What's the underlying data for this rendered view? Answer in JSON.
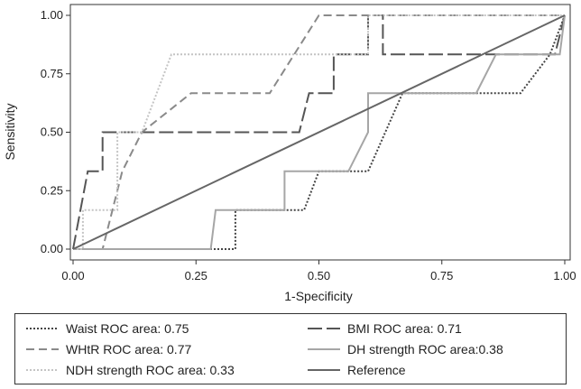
{
  "chart_data": {
    "type": "line",
    "xlabel": "1-Specificity",
    "ylabel": "Sensitivity",
    "xlim": [
      0,
      1
    ],
    "ylim": [
      0,
      1
    ],
    "xticks": [
      "0.00",
      "0.25",
      "0.50",
      "0.75",
      "1.00"
    ],
    "yticks": [
      "0.00",
      "0.25",
      "0.50",
      "0.75",
      "1.00"
    ],
    "grid": false,
    "legend_position": "bottom",
    "series": [
      {
        "name": "Waist ROC area: 0.75",
        "color": "#444444",
        "dash": "dotted",
        "points": [
          [
            0,
            0
          ],
          [
            0.33,
            0
          ],
          [
            0.33,
            0.167
          ],
          [
            0.47,
            0.167
          ],
          [
            0.5,
            0.333
          ],
          [
            0.6,
            0.333
          ],
          [
            0.67,
            0.667
          ],
          [
            0.91,
            0.667
          ],
          [
            0.97,
            0.833
          ],
          [
            1,
            1
          ]
        ]
      },
      {
        "name": "BMI ROC area: 0.71",
        "color": "#555555",
        "dash": "longdash",
        "points": [
          [
            0,
            0
          ],
          [
            0.03,
            0.333
          ],
          [
            0.06,
            0.333
          ],
          [
            0.06,
            0.5
          ],
          [
            0.46,
            0.5
          ],
          [
            0.48,
            0.667
          ],
          [
            0.53,
            0.667
          ],
          [
            0.53,
            0.833
          ],
          [
            0.6,
            0.833
          ],
          [
            0.6,
            1
          ],
          [
            0.63,
            1
          ],
          [
            0.63,
            0.833
          ],
          [
            0.98,
            0.833
          ],
          [
            1,
            1
          ]
        ]
      },
      {
        "name": "WHtR ROC area: 0.77",
        "color": "#8a8a8a",
        "dash": "dashed",
        "points": [
          [
            0,
            0
          ],
          [
            0.06,
            0
          ],
          [
            0.1,
            0.333
          ],
          [
            0.14,
            0.5
          ],
          [
            0.24,
            0.667
          ],
          [
            0.4,
            0.667
          ],
          [
            0.5,
            1
          ],
          [
            0.63,
            1
          ],
          [
            1,
            1
          ]
        ]
      },
      {
        "name": "DH strength ROC area:0.38",
        "color": "#a6a6a6",
        "dash": "solid",
        "points": [
          [
            0,
            0
          ],
          [
            0.28,
            0
          ],
          [
            0.29,
            0.167
          ],
          [
            0.43,
            0.167
          ],
          [
            0.43,
            0.333
          ],
          [
            0.56,
            0.333
          ],
          [
            0.6,
            0.5
          ],
          [
            0.6,
            0.667
          ],
          [
            0.82,
            0.667
          ],
          [
            0.86,
            0.833
          ],
          [
            0.99,
            0.833
          ],
          [
            1,
            1
          ]
        ]
      },
      {
        "name": "NDH strength ROC area: 0.33",
        "color": "#c4c4c4",
        "dash": "dotted",
        "points": [
          [
            0,
            0
          ],
          [
            0.02,
            0
          ],
          [
            0.02,
            0.167
          ],
          [
            0.09,
            0.167
          ],
          [
            0.09,
            0.5
          ],
          [
            0.14,
            0.5
          ],
          [
            0.2,
            0.833
          ],
          [
            0.6,
            0.833
          ],
          [
            0.6,
            1
          ],
          [
            1,
            1
          ]
        ]
      },
      {
        "name": "Reference",
        "color": "#666666",
        "dash": "solid",
        "points": [
          [
            0,
            0
          ],
          [
            1,
            1
          ]
        ]
      }
    ]
  }
}
